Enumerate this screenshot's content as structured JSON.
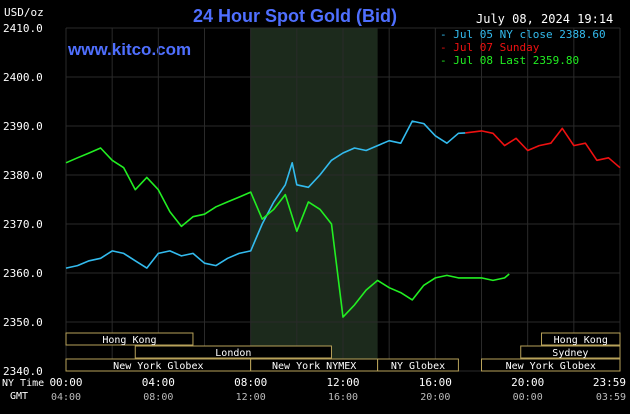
{
  "header": {
    "title": "24 Hour Spot Gold (Bid)",
    "date_time": "July 08, 2024 19:14",
    "unit": "USD/oz",
    "brand": "www.kitco.com"
  },
  "colors": {
    "background": "#000000",
    "grid": "#2a2a2a",
    "axis_text": "#ffffff",
    "title": "#4f6fff",
    "brand": "#4f6fff",
    "series_jul05": "#33bbee",
    "series_jul07": "#ee1111",
    "series_jul08": "#22ee22",
    "highlight": "#1c2a1c",
    "session_fill": "#000000",
    "session_border": "#b8a25a"
  },
  "legend": [
    {
      "text": "Jul 05 NY close 2388.60",
      "color": "#33bbee"
    },
    {
      "text": "Jul 07 Sunday",
      "color": "#ee1111"
    },
    {
      "text": "Jul 08 Last 2359.80",
      "color": "#22ee22"
    }
  ],
  "axis": {
    "row1_label": "NY Time",
    "row2_label": "GMT",
    "ny_ticks": [
      "00:00",
      "04:00",
      "08:00",
      "12:00",
      "16:00",
      "20:00",
      "23:59"
    ],
    "gmt_ticks": [
      "04:00",
      "08:00",
      "12:00",
      "16:00",
      "20:00",
      "00:00",
      "03:59"
    ]
  },
  "sessions": {
    "row1": [
      {
        "label": "Hong Kong",
        "start": 0.0,
        "end": 5.5
      },
      {
        "label": "Hong Kong",
        "start": 20.6,
        "end": 24.0
      }
    ],
    "row2": [
      {
        "label": "London",
        "start": 3.0,
        "end": 11.5
      },
      {
        "label": "Sydney",
        "start": 19.7,
        "end": 24.0
      }
    ],
    "row3": [
      {
        "label": "New York Globex",
        "start": 0.0,
        "end": 8.0
      },
      {
        "label": "New York NYMEX",
        "start": 8.0,
        "end": 13.5
      },
      {
        "label": "NY Globex",
        "start": 13.5,
        "end": 17.0
      },
      {
        "label": "New York Globex",
        "start": 18.0,
        "end": 24.0
      }
    ]
  },
  "chart_data": {
    "type": "line",
    "title": "24 Hour Spot Gold (Bid)",
    "ylabel": "USD/oz",
    "xlabel": "NY Time",
    "xlim": [
      0,
      24
    ],
    "ylim": [
      2340,
      2410
    ],
    "y_ticks": [
      "2340.0",
      "2350.0",
      "2360.0",
      "2370.0",
      "2380.0",
      "2390.0",
      "2400.0",
      "2410.0"
    ],
    "y_tick_values": [
      2340,
      2350,
      2360,
      2370,
      2380,
      2390,
      2400,
      2410
    ],
    "highlight_range": [
      8.0,
      13.5
    ],
    "series": [
      {
        "name": "Jul 05 NY close 2388.60",
        "color": "#33bbee",
        "x": [
          0.0,
          0.5,
          1.0,
          1.5,
          2.0,
          2.5,
          3.0,
          3.5,
          4.0,
          4.5,
          5.0,
          5.5,
          6.0,
          6.5,
          7.0,
          7.5,
          8.0,
          8.5,
          9.0,
          9.5,
          9.8,
          10.0,
          10.5,
          11.0,
          11.5,
          12.0,
          12.5,
          13.0,
          13.5,
          14.0,
          14.5,
          15.0,
          15.5,
          16.0,
          16.5,
          17.0,
          17.3
        ],
        "y": [
          2361.0,
          2361.5,
          2362.5,
          2363.0,
          2364.5,
          2364.0,
          2362.5,
          2361.0,
          2364.0,
          2364.5,
          2363.5,
          2364.0,
          2362.0,
          2361.5,
          2363.0,
          2364.0,
          2364.5,
          2370.0,
          2374.5,
          2378.0,
          2382.5,
          2378.0,
          2377.5,
          2380.0,
          2383.0,
          2384.5,
          2385.5,
          2385.0,
          2386.0,
          2387.0,
          2386.5,
          2391.0,
          2390.5,
          2388.0,
          2386.5,
          2388.5,
          2388.6
        ]
      },
      {
        "name": "Jul 07 Sunday",
        "color": "#ee1111",
        "x": [
          17.3,
          18.0,
          18.5,
          19.0,
          19.5,
          20.0,
          20.5,
          21.0,
          21.5,
          22.0,
          22.5,
          23.0,
          23.5,
          24.0
        ],
        "y": [
          2388.6,
          2389.0,
          2388.5,
          2386.0,
          2387.5,
          2385.0,
          2386.0,
          2386.5,
          2389.5,
          2386.0,
          2386.5,
          2383.0,
          2383.5,
          2381.5
        ]
      },
      {
        "name": "Jul 08 Last 2359.80",
        "color": "#22ee22",
        "x": [
          0.0,
          0.5,
          1.0,
          1.5,
          2.0,
          2.5,
          3.0,
          3.5,
          4.0,
          4.5,
          5.0,
          5.5,
          6.0,
          6.5,
          7.0,
          7.5,
          8.0,
          8.5,
          9.0,
          9.5,
          10.0,
          10.5,
          11.0,
          11.5,
          12.0,
          12.5,
          13.0,
          13.5,
          14.0,
          14.5,
          15.0,
          15.5,
          16.0,
          16.5,
          17.0,
          17.5,
          18.0,
          18.5,
          19.0,
          19.2
        ],
        "y": [
          2382.5,
          2383.5,
          2384.5,
          2385.5,
          2383.0,
          2381.5,
          2377.0,
          2379.5,
          2377.0,
          2372.5,
          2369.5,
          2371.5,
          2372.0,
          2373.5,
          2374.5,
          2375.5,
          2376.5,
          2371.0,
          2373.0,
          2376.0,
          2368.5,
          2374.5,
          2373.0,
          2370.0,
          2351.0,
          2353.5,
          2356.5,
          2358.5,
          2357.0,
          2356.0,
          2354.5,
          2357.5,
          2359.0,
          2359.5,
          2359.0,
          2359.0,
          2359.0,
          2358.5,
          2359.0,
          2359.8
        ]
      }
    ]
  }
}
